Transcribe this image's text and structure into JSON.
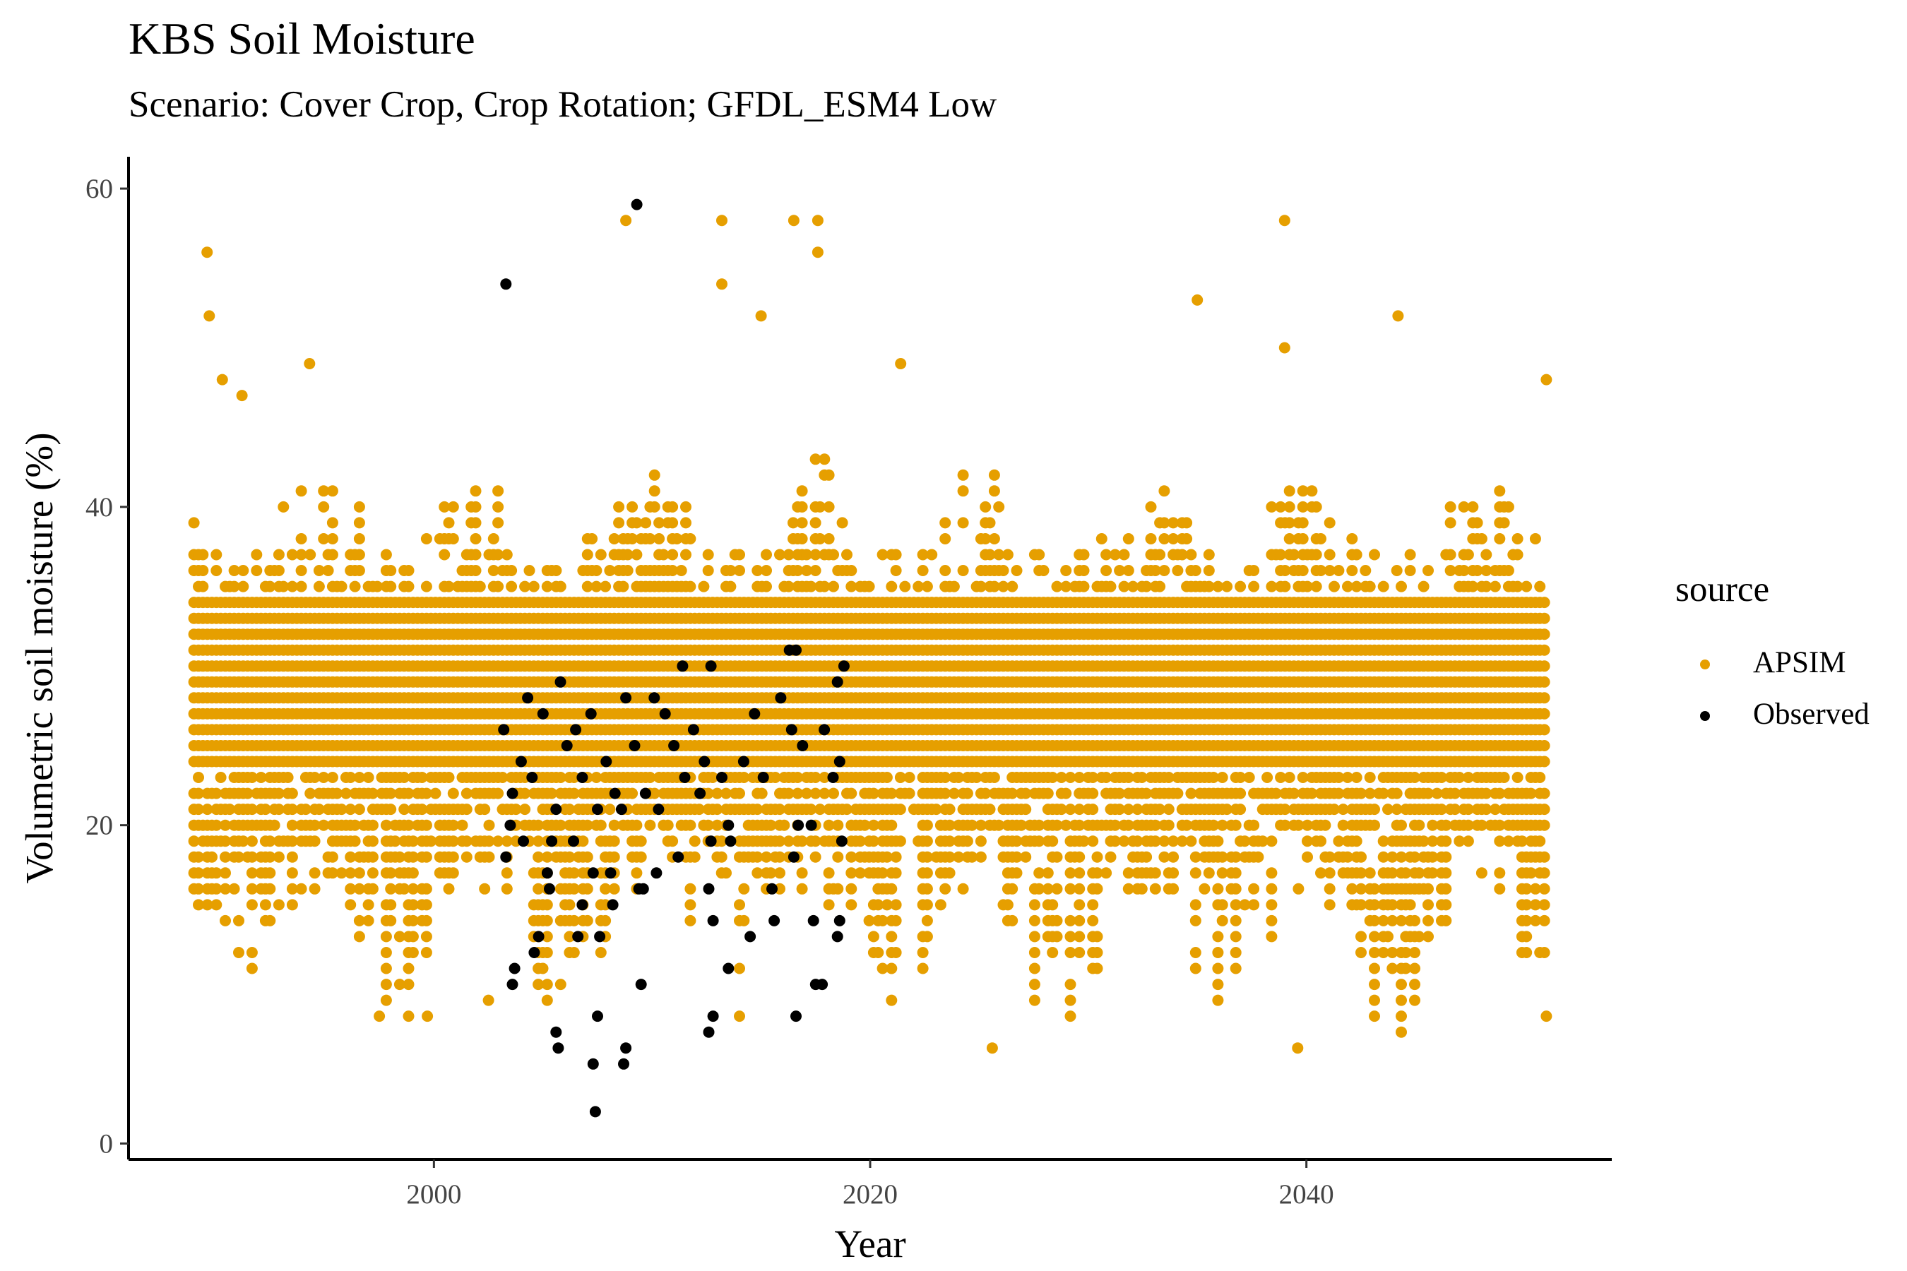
{
  "chart_data": {
    "type": "scatter",
    "title": "KBS Soil Moisture",
    "subtitle": "Scenario: Cover Crop, Crop Rotation; GFDL_ESM4 Low",
    "xlabel": "Year",
    "ylabel": "Volumetric soil moisture (%)",
    "xlim": [
      1986,
      2054
    ],
    "ylim": [
      -1,
      62
    ],
    "x_ticks": [
      2000,
      2020,
      2040
    ],
    "y_ticks": [
      0,
      20,
      40,
      60
    ],
    "legend": {
      "title": "source",
      "position": "right",
      "entries": [
        {
          "label": "APSIM",
          "color": "#E69F00"
        },
        {
          "label": "Observed",
          "color": "#000000"
        }
      ]
    },
    "apsim": {
      "x_range": [
        1989,
        2051
      ],
      "band_min": 24,
      "band_max": 34,
      "note": "Dense daily simulated series plotted at 1% resolution",
      "highlights": [
        {
          "x": 1989.0,
          "y": 20
        },
        {
          "x": 1989.6,
          "y": 56
        },
        {
          "x": 1989.7,
          "y": 52
        },
        {
          "x": 1990.3,
          "y": 48
        },
        {
          "x": 1991.2,
          "y": 47
        },
        {
          "x": 1994.3,
          "y": 49
        },
        {
          "x": 1997.5,
          "y": 8
        },
        {
          "x": 1999.7,
          "y": 8
        },
        {
          "x": 2002.5,
          "y": 9
        },
        {
          "x": 2008.8,
          "y": 58
        },
        {
          "x": 2013.2,
          "y": 58
        },
        {
          "x": 2013.2,
          "y": 54
        },
        {
          "x": 2015.0,
          "y": 52
        },
        {
          "x": 2016.5,
          "y": 58
        },
        {
          "x": 2017.6,
          "y": 58
        },
        {
          "x": 2017.6,
          "y": 56
        },
        {
          "x": 2021.4,
          "y": 49
        },
        {
          "x": 2025.6,
          "y": 6
        },
        {
          "x": 2035.0,
          "y": 53
        },
        {
          "x": 2039.0,
          "y": 58
        },
        {
          "x": 2039.0,
          "y": 50
        },
        {
          "x": 2039.6,
          "y": 6
        },
        {
          "x": 2044.2,
          "y": 52
        },
        {
          "x": 2051.0,
          "y": 48
        },
        {
          "x": 2051.0,
          "y": 8
        }
      ]
    },
    "observed": {
      "x_range": [
        2003,
        2019
      ],
      "points": [
        {
          "x": 2003.3,
          "y": 54
        },
        {
          "x": 2009.3,
          "y": 59
        },
        {
          "x": 2007.4,
          "y": 2
        },
        {
          "x": 2007.3,
          "y": 5
        },
        {
          "x": 2008.7,
          "y": 5
        },
        {
          "x": 2008.8,
          "y": 6
        },
        {
          "x": 2005.6,
          "y": 7
        },
        {
          "x": 2005.7,
          "y": 6
        },
        {
          "x": 2007.5,
          "y": 8
        },
        {
          "x": 2012.6,
          "y": 7
        },
        {
          "x": 2012.8,
          "y": 8
        },
        {
          "x": 2016.6,
          "y": 8
        },
        {
          "x": 2003.6,
          "y": 10
        },
        {
          "x": 2003.7,
          "y": 11
        },
        {
          "x": 2009.5,
          "y": 10
        },
        {
          "x": 2013.5,
          "y": 11
        },
        {
          "x": 2017.5,
          "y": 10
        },
        {
          "x": 2017.8,
          "y": 10
        },
        {
          "x": 2004.6,
          "y": 12
        },
        {
          "x": 2004.8,
          "y": 13
        },
        {
          "x": 2006.6,
          "y": 13
        },
        {
          "x": 2007.6,
          "y": 13
        },
        {
          "x": 2014.5,
          "y": 13
        },
        {
          "x": 2018.5,
          "y": 13
        },
        {
          "x": 2018.6,
          "y": 14
        },
        {
          "x": 2006.8,
          "y": 15
        },
        {
          "x": 2008.2,
          "y": 15
        },
        {
          "x": 2012.8,
          "y": 14
        },
        {
          "x": 2015.6,
          "y": 14
        },
        {
          "x": 2017.4,
          "y": 14
        },
        {
          "x": 2005.3,
          "y": 16
        },
        {
          "x": 2009.4,
          "y": 16
        },
        {
          "x": 2009.6,
          "y": 16
        },
        {
          "x": 2012.6,
          "y": 16
        },
        {
          "x": 2015.5,
          "y": 16
        },
        {
          "x": 2005.2,
          "y": 17
        },
        {
          "x": 2007.3,
          "y": 17
        },
        {
          "x": 2008.1,
          "y": 17
        },
        {
          "x": 2010.2,
          "y": 17
        },
        {
          "x": 2003.3,
          "y": 18
        },
        {
          "x": 2004.1,
          "y": 19
        },
        {
          "x": 2005.4,
          "y": 19
        },
        {
          "x": 2006.4,
          "y": 19
        },
        {
          "x": 2011.2,
          "y": 18
        },
        {
          "x": 2012.7,
          "y": 19
        },
        {
          "x": 2013.6,
          "y": 19
        },
        {
          "x": 2016.5,
          "y": 18
        },
        {
          "x": 2018.7,
          "y": 19
        },
        {
          "x": 2003.5,
          "y": 20
        },
        {
          "x": 2005.6,
          "y": 21
        },
        {
          "x": 2007.5,
          "y": 21
        },
        {
          "x": 2008.6,
          "y": 21
        },
        {
          "x": 2010.3,
          "y": 21
        },
        {
          "x": 2012.2,
          "y": 22
        },
        {
          "x": 2013.5,
          "y": 20
        },
        {
          "x": 2016.7,
          "y": 20
        },
        {
          "x": 2017.3,
          "y": 20
        },
        {
          "x": 2003.6,
          "y": 22
        },
        {
          "x": 2004.5,
          "y": 23
        },
        {
          "x": 2006.8,
          "y": 23
        },
        {
          "x": 2008.3,
          "y": 22
        },
        {
          "x": 2009.7,
          "y": 22
        },
        {
          "x": 2011.5,
          "y": 23
        },
        {
          "x": 2013.2,
          "y": 23
        },
        {
          "x": 2015.1,
          "y": 23
        },
        {
          "x": 2018.3,
          "y": 23
        },
        {
          "x": 2004.0,
          "y": 24
        },
        {
          "x": 2006.1,
          "y": 25
        },
        {
          "x": 2007.9,
          "y": 24
        },
        {
          "x": 2009.2,
          "y": 25
        },
        {
          "x": 2011.0,
          "y": 25
        },
        {
          "x": 2012.4,
          "y": 24
        },
        {
          "x": 2014.2,
          "y": 24
        },
        {
          "x": 2016.9,
          "y": 25
        },
        {
          "x": 2018.6,
          "y": 24
        },
        {
          "x": 2003.2,
          "y": 26
        },
        {
          "x": 2005.0,
          "y": 27
        },
        {
          "x": 2006.5,
          "y": 26
        },
        {
          "x": 2008.8,
          "y": 28
        },
        {
          "x": 2010.6,
          "y": 27
        },
        {
          "x": 2011.9,
          "y": 26
        },
        {
          "x": 2014.7,
          "y": 27
        },
        {
          "x": 2016.4,
          "y": 26
        },
        {
          "x": 2017.9,
          "y": 26
        },
        {
          "x": 2004.3,
          "y": 28
        },
        {
          "x": 2005.8,
          "y": 29
        },
        {
          "x": 2007.2,
          "y": 27
        },
        {
          "x": 2010.1,
          "y": 28
        },
        {
          "x": 2011.4,
          "y": 30
        },
        {
          "x": 2012.7,
          "y": 30
        },
        {
          "x": 2015.9,
          "y": 28
        },
        {
          "x": 2016.3,
          "y": 31
        },
        {
          "x": 2016.6,
          "y": 31
        },
        {
          "x": 2018.5,
          "y": 29
        },
        {
          "x": 2018.8,
          "y": 30
        }
      ]
    }
  }
}
